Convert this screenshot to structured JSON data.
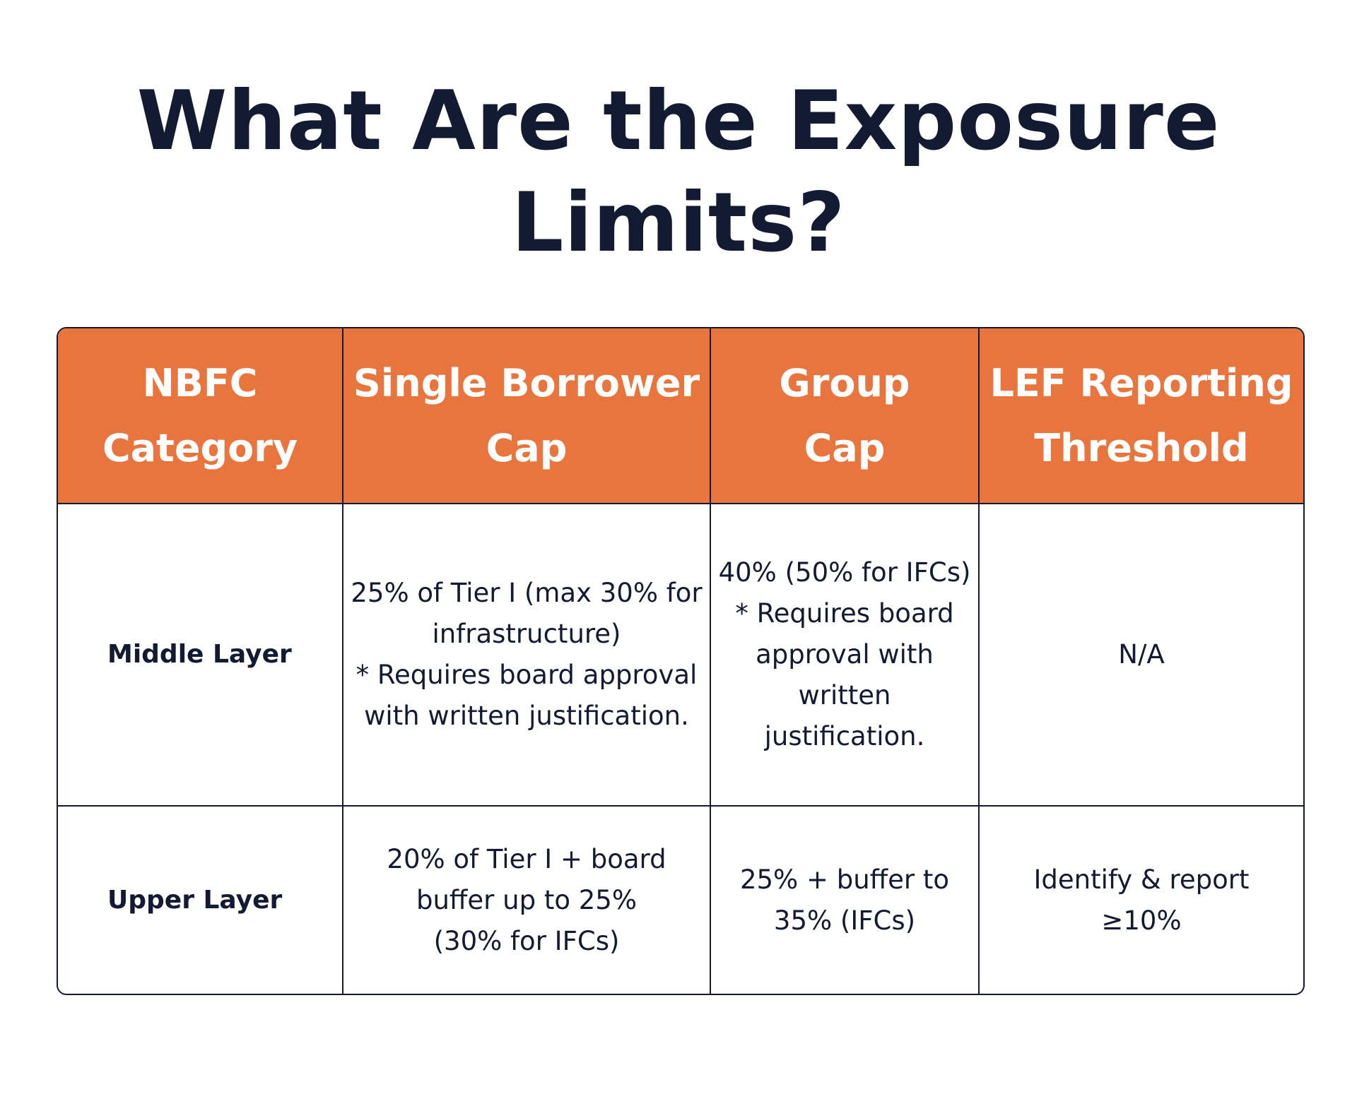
{
  "page": {
    "title_line1": "What Are the Exposure",
    "title_line2": "Limits?"
  },
  "colors": {
    "header_background": "#e8743e",
    "header_text": "#ffffff",
    "body_text": "#131b33",
    "border": "#131b33"
  },
  "table": {
    "headers": [
      [
        "NBFC",
        "Category"
      ],
      [
        "Single Borrower",
        "Cap"
      ],
      [
        "Group",
        "Cap"
      ],
      [
        "LEF Reporting",
        "Threshold"
      ]
    ],
    "rows": [
      {
        "category": "Middle Layer",
        "single_borrower": [
          "25% of Tier I (max 30% for",
          "infrastructure)",
          "* Requires board approval",
          "with written justification."
        ],
        "group": [
          "40% (50% for IFCs)",
          "* Requires board",
          "approval with written",
          "justification."
        ],
        "lef": [
          "N/A"
        ]
      },
      {
        "category": "Upper Layer",
        "single_borrower": [
          "20% of Tier I + board",
          "buffer up to 25%",
          "(30% for IFCs)"
        ],
        "group": [
          "25% + buffer to",
          "35% (IFCs)"
        ],
        "lef": [
          "Identify & report",
          "≥10%"
        ]
      }
    ]
  }
}
